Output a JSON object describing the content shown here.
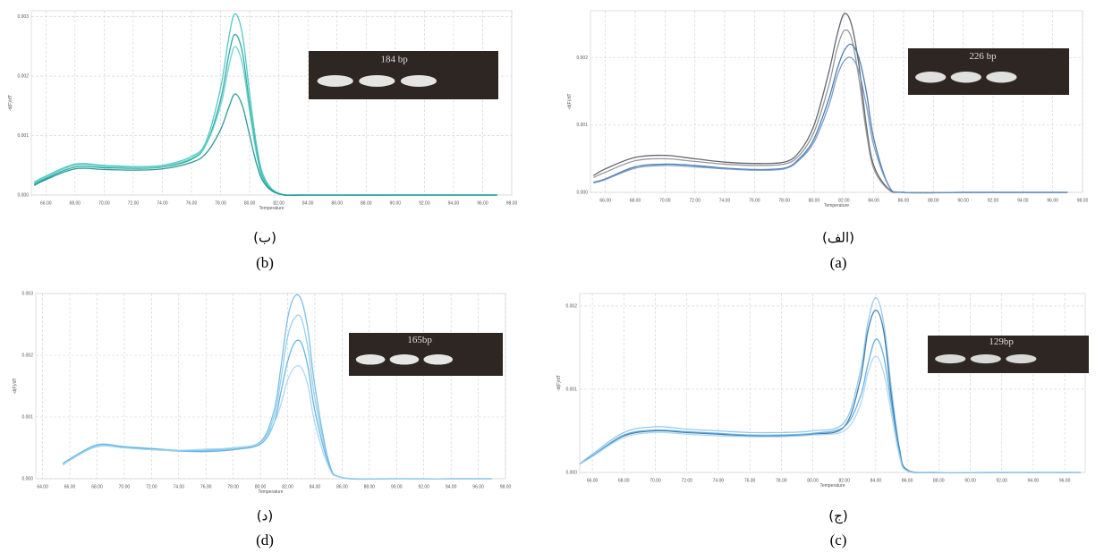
{
  "chart_data": [
    {
      "type": "line",
      "caption": "(ب)",
      "caption_en": "(b)",
      "inset_label": "184 bp",
      "xlabel": "Temperature",
      "ylabel": "-d(F)/dT",
      "grid": true,
      "xlim": [
        65,
        98
      ],
      "ylim": [
        0,
        0.0031
      ],
      "xticks": [
        {
          "value": 66,
          "label": "66.00"
        },
        {
          "value": 68,
          "label": "68.00"
        },
        {
          "value": 70,
          "label": "70.00"
        },
        {
          "value": 72,
          "label": "72.00"
        },
        {
          "value": 74,
          "label": "74.00"
        },
        {
          "value": 76,
          "label": "76.00"
        },
        {
          "value": 78,
          "label": "78.00"
        },
        {
          "value": 80,
          "label": "80.00"
        },
        {
          "value": 82,
          "label": "82.00"
        },
        {
          "value": 84,
          "label": "84.00"
        },
        {
          "value": 86,
          "label": "86.00"
        },
        {
          "value": 88,
          "label": "88.00"
        },
        {
          "value": 90,
          "label": "90.00"
        },
        {
          "value": 92,
          "label": "92.00"
        },
        {
          "value": 94,
          "label": "94.00"
        },
        {
          "value": 96,
          "label": "96.00"
        },
        {
          "value": 98,
          "label": "98.00"
        }
      ],
      "yticks": [
        {
          "value": 0,
          "label": "0.000"
        },
        {
          "value": 0.001,
          "label": "0.001"
        },
        {
          "value": 0.002,
          "label": "0.002"
        },
        {
          "value": 0.003,
          "label": "0.003"
        }
      ],
      "x": [
        65.2,
        66,
        68,
        70,
        72,
        74,
        76,
        77,
        78,
        78.6,
        79,
        79.5,
        80,
        80.5,
        81,
        82,
        84,
        90,
        97
      ],
      "series": [
        {
          "color": "#3fc4bc",
          "values": [
            0.00022,
            0.00032,
            0.00052,
            0.0005,
            0.00048,
            0.0005,
            0.00065,
            0.0009,
            0.0018,
            0.0027,
            0.00305,
            0.0027,
            0.0017,
            0.0008,
            0.0003,
            3e-05,
            0,
            0,
            0
          ]
        },
        {
          "color": "#1a9e9a",
          "values": [
            0.00018,
            0.00028,
            0.00047,
            0.00046,
            0.00045,
            0.00047,
            0.0006,
            0.00085,
            0.0016,
            0.0024,
            0.0027,
            0.0024,
            0.0015,
            0.0007,
            0.00025,
            2e-05,
            0,
            0,
            0
          ]
        },
        {
          "color": "#5fcfc8",
          "values": [
            0.0002,
            0.0003,
            0.0005,
            0.00048,
            0.00046,
            0.00048,
            0.00062,
            0.00085,
            0.0015,
            0.0022,
            0.0025,
            0.0022,
            0.0014,
            0.00065,
            0.00022,
            2e-05,
            0,
            0,
            0
          ]
        },
        {
          "color": "#148f8a",
          "values": [
            0.00016,
            0.00026,
            0.00044,
            0.00043,
            0.00042,
            0.00044,
            0.00055,
            0.0007,
            0.0011,
            0.0015,
            0.0017,
            0.0015,
            0.001,
            0.0005,
            0.0002,
            2e-05,
            0,
            0,
            0
          ]
        }
      ]
    },
    {
      "type": "line",
      "caption": "(الف)",
      "caption_en": "(a)",
      "inset_label": "226 bp",
      "xlabel": "Temperature",
      "ylabel": "-d(F)/dT",
      "grid": true,
      "xlim": [
        65,
        98
      ],
      "ylim": [
        0,
        0.0027
      ],
      "xticks": [
        {
          "value": 66,
          "label": "66.00"
        },
        {
          "value": 68,
          "label": "68.00"
        },
        {
          "value": 70,
          "label": "70.00"
        },
        {
          "value": 72,
          "label": "72.00"
        },
        {
          "value": 74,
          "label": "74.00"
        },
        {
          "value": 76,
          "label": "76.00"
        },
        {
          "value": 78,
          "label": "78.00"
        },
        {
          "value": 80,
          "label": "80.00"
        },
        {
          "value": 82,
          "label": "82.00"
        },
        {
          "value": 84,
          "label": "84.00"
        },
        {
          "value": 86,
          "label": "86.00"
        },
        {
          "value": 88,
          "label": "88.00"
        },
        {
          "value": 90,
          "label": "90.00"
        },
        {
          "value": 92,
          "label": "92.00"
        },
        {
          "value": 94,
          "label": "94.00"
        },
        {
          "value": 96,
          "label": "96.00"
        },
        {
          "value": 98,
          "label": "98.00"
        }
      ],
      "yticks": [
        {
          "value": 0,
          "label": "0.000"
        },
        {
          "value": 0.001,
          "label": "0.001"
        },
        {
          "value": 0.002,
          "label": "0.002"
        }
      ],
      "x": [
        65.2,
        66,
        68,
        70,
        72,
        74,
        76,
        78,
        79,
        80,
        81,
        81.5,
        82,
        82.5,
        83,
        83.5,
        84,
        85,
        86,
        90,
        97
      ],
      "series": [
        {
          "color": "#55575e",
          "values": [
            0.00025,
            0.00035,
            0.00052,
            0.00055,
            0.0005,
            0.00045,
            0.00043,
            0.00045,
            0.0006,
            0.001,
            0.0018,
            0.0023,
            0.00265,
            0.0025,
            0.0019,
            0.001,
            0.0004,
            5e-05,
            0,
            0,
            0
          ]
        },
        {
          "color": "#8a8c93",
          "values": [
            0.00022,
            0.0003,
            0.00047,
            0.0005,
            0.00046,
            0.00042,
            0.0004,
            0.00042,
            0.00055,
            0.0009,
            0.0016,
            0.0021,
            0.0024,
            0.0023,
            0.0017,
            0.0009,
            0.00035,
            4e-05,
            0,
            0,
            0
          ]
        },
        {
          "color": "#3d6fa8",
          "values": [
            0.00015,
            0.0002,
            0.00038,
            0.00042,
            0.0004,
            0.00036,
            0.00034,
            0.00036,
            0.0005,
            0.0008,
            0.0014,
            0.0018,
            0.0021,
            0.0022,
            0.002,
            0.0015,
            0.0008,
            0.0001,
            0,
            0,
            0
          ]
        },
        {
          "color": "#6b95c4",
          "values": [
            0.00014,
            0.00019,
            0.00036,
            0.0004,
            0.00038,
            0.00035,
            0.00033,
            0.00035,
            0.00048,
            0.00075,
            0.0013,
            0.0017,
            0.00195,
            0.002,
            0.0018,
            0.0013,
            0.0007,
            0.0001,
            0,
            0,
            0
          ]
        }
      ]
    },
    {
      "type": "line",
      "caption": "(د)",
      "caption_en": "(d)",
      "inset_label": "165bp",
      "xlabel": "Temperature",
      "ylabel": "-d(F)/dT",
      "grid": true,
      "xlim": [
        63.5,
        98
      ],
      "ylim": [
        0,
        0.003
      ],
      "xticks": [
        {
          "value": 64,
          "label": "64.00"
        },
        {
          "value": 66,
          "label": "66.00"
        },
        {
          "value": 68,
          "label": "68.00"
        },
        {
          "value": 70,
          "label": "70.00"
        },
        {
          "value": 72,
          "label": "72.00"
        },
        {
          "value": 74,
          "label": "74.00"
        },
        {
          "value": 76,
          "label": "76.00"
        },
        {
          "value": 78,
          "label": "78.00"
        },
        {
          "value": 80,
          "label": "80.00"
        },
        {
          "value": 82,
          "label": "82.00"
        },
        {
          "value": 84,
          "label": "84.00"
        },
        {
          "value": 86,
          "label": "86.00"
        },
        {
          "value": 88,
          "label": "88.00"
        },
        {
          "value": 90,
          "label": "90.00"
        },
        {
          "value": 92,
          "label": "92.00"
        },
        {
          "value": 94,
          "label": "94.00"
        },
        {
          "value": 96,
          "label": "96.00"
        },
        {
          "value": 98,
          "label": "98.00"
        }
      ],
      "yticks": [
        {
          "value": 0,
          "label": "0.000"
        },
        {
          "value": 0.001,
          "label": "0.001"
        },
        {
          "value": 0.002,
          "label": "0.002"
        },
        {
          "value": 0.003,
          "label": "0.003"
        }
      ],
      "x": [
        65.5,
        66,
        68,
        70,
        72,
        74,
        76,
        78,
        80,
        81,
        81.5,
        82,
        82.5,
        83,
        83.5,
        84,
        85,
        86,
        90,
        97
      ],
      "series": [
        {
          "color": "#6fb8e2",
          "values": [
            0.00025,
            0.00032,
            0.00055,
            0.00052,
            0.00049,
            0.00046,
            0.00046,
            0.0005,
            0.0006,
            0.0011,
            0.0018,
            0.0026,
            0.00295,
            0.0029,
            0.0024,
            0.0015,
            0.0003,
            2e-05,
            0,
            0
          ]
        },
        {
          "color": "#8ccbeb",
          "values": [
            0.00022,
            0.0003,
            0.00052,
            0.0005,
            0.00047,
            0.00045,
            0.00045,
            0.00048,
            0.00058,
            0.001,
            0.0016,
            0.0023,
            0.0026,
            0.0026,
            0.0021,
            0.0013,
            0.00028,
            2e-05,
            0,
            0
          ]
        },
        {
          "color": "#5aaedd",
          "values": [
            0.00024,
            0.00031,
            0.00054,
            0.00051,
            0.00048,
            0.00045,
            0.00044,
            0.00047,
            0.00056,
            0.0009,
            0.0014,
            0.0019,
            0.0022,
            0.0022,
            0.0018,
            0.0011,
            0.00025,
            2e-05,
            0,
            0
          ]
        },
        {
          "color": "#a3d5f0",
          "values": [
            0.00023,
            0.0003,
            0.00053,
            0.0005,
            0.00047,
            0.00046,
            0.00048,
            0.0005,
            0.00058,
            0.0009,
            0.0012,
            0.0016,
            0.0018,
            0.0018,
            0.0015,
            0.0009,
            0.0002,
            2e-05,
            0,
            0
          ]
        }
      ]
    },
    {
      "type": "line",
      "caption": "(ج)",
      "caption_en": "(c)",
      "inset_label": "129bp",
      "xlabel": "Temperature",
      "ylabel": "-d(F)/dT",
      "grid": true,
      "xlim": [
        65.2,
        97.3
      ],
      "ylim": [
        0,
        0.00215
      ],
      "xticks": [
        {
          "value": 66,
          "label": "66.00"
        },
        {
          "value": 68,
          "label": "68.00"
        },
        {
          "value": 70,
          "label": "70.00"
        },
        {
          "value": 72,
          "label": "72.00"
        },
        {
          "value": 74,
          "label": "74.00"
        },
        {
          "value": 76,
          "label": "76.00"
        },
        {
          "value": 78,
          "label": "78.00"
        },
        {
          "value": 80,
          "label": "80.00"
        },
        {
          "value": 82,
          "label": "82.00"
        },
        {
          "value": 84,
          "label": "84.00"
        },
        {
          "value": 86,
          "label": "86.00"
        },
        {
          "value": 88,
          "label": "88.00"
        },
        {
          "value": 90,
          "label": "90.00"
        },
        {
          "value": 92,
          "label": "92.00"
        },
        {
          "value": 94,
          "label": "94.00"
        },
        {
          "value": 96,
          "label": "96.00"
        }
      ],
      "yticks": [
        {
          "value": 0,
          "label": "0.000"
        },
        {
          "value": 0.001,
          "label": "0.001"
        },
        {
          "value": 0.002,
          "label": "0.002"
        }
      ],
      "x": [
        65.2,
        66,
        68,
        70,
        72,
        74,
        76,
        78,
        80,
        82,
        83,
        83.5,
        84,
        84.5,
        85,
        85.5,
        86,
        88,
        92,
        97
      ],
      "series": [
        {
          "color": "#86c3ea",
          "values": [
            0.0001,
            0.00022,
            0.00048,
            0.00055,
            0.00052,
            0.0005,
            0.00048,
            0.00048,
            0.0005,
            0.0006,
            0.0012,
            0.0018,
            0.0021,
            0.0018,
            0.001,
            0.0003,
            3e-05,
            0,
            0,
            0
          ]
        },
        {
          "color": "#2f6fa3",
          "values": [
            0.0001,
            0.0002,
            0.00044,
            0.0005,
            0.00048,
            0.00046,
            0.00044,
            0.00044,
            0.00046,
            0.00055,
            0.0011,
            0.0017,
            0.00195,
            0.0017,
            0.0009,
            0.00028,
            3e-05,
            0,
            0,
            0
          ]
        },
        {
          "color": "#5aa8dc",
          "values": [
            0.0001,
            0.0002,
            0.00045,
            0.00051,
            0.00049,
            0.00047,
            0.00045,
            0.00045,
            0.00047,
            0.00055,
            0.0009,
            0.0013,
            0.0016,
            0.0014,
            0.0008,
            0.00025,
            2e-05,
            0,
            0,
            0
          ]
        },
        {
          "color": "#a6d3f0",
          "values": [
            0.0001,
            0.00019,
            0.00042,
            0.00048,
            0.00046,
            0.00044,
            0.00043,
            0.00043,
            0.00045,
            0.0005,
            0.0008,
            0.0012,
            0.0014,
            0.0012,
            0.0007,
            0.0002,
            2e-05,
            0,
            0,
            0
          ]
        }
      ]
    }
  ]
}
